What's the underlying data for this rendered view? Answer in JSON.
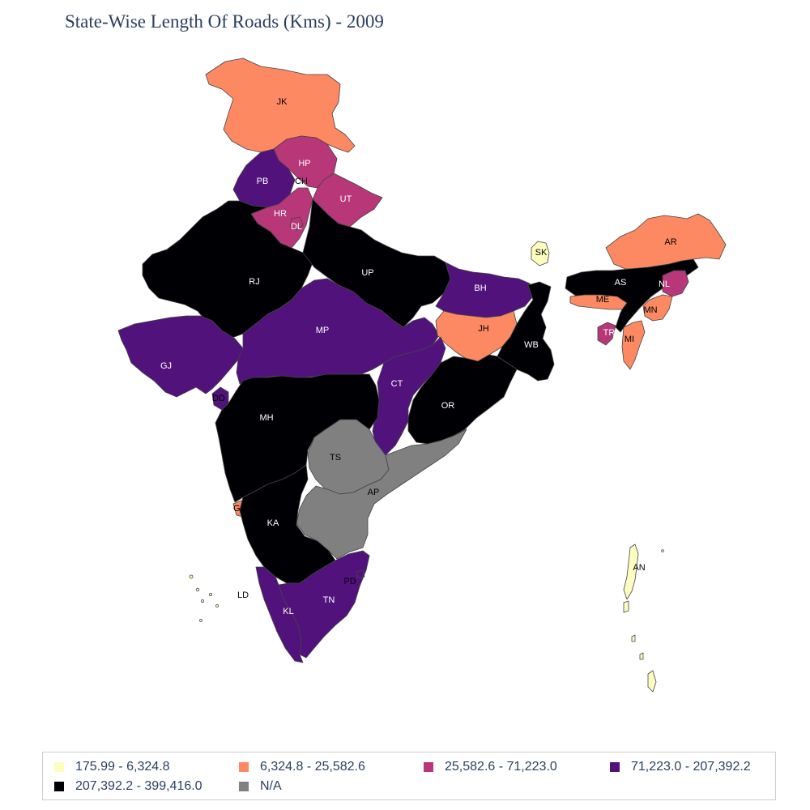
{
  "title": "State-Wise Length Of Roads (Kms) - 2009",
  "colors": {
    "c1": "#fcfdbf",
    "c2": "#fc8961",
    "c3": "#b73779",
    "c4": "#51127c",
    "c5": "#000004",
    "na": "#808080"
  },
  "legend": [
    {
      "label": "175.99 - 6,324.8",
      "color": "#fcfdbf"
    },
    {
      "label": "6,324.8 - 25,582.6",
      "color": "#fc8961"
    },
    {
      "label": "25,582.6 - 71,223.0",
      "color": "#b73779"
    },
    {
      "label": "71,223.0 - 207,392.2",
      "color": "#51127c"
    },
    {
      "label": "207,392.2 - 399,416.0",
      "color": "#000004"
    },
    {
      "label": "N/A",
      "color": "#808080"
    }
  ],
  "states": [
    {
      "code": "JK",
      "class": "6,324.8 - 25,582.6"
    },
    {
      "code": "HP",
      "class": "25,582.6 - 71,223.0"
    },
    {
      "code": "PB",
      "class": "71,223.0 - 207,392.2"
    },
    {
      "code": "CH",
      "class": "25,582.6 - 71,223.0"
    },
    {
      "code": "UT",
      "class": "25,582.6 - 71,223.0"
    },
    {
      "code": "HR",
      "class": "25,582.6 - 71,223.0"
    },
    {
      "code": "DL",
      "class": "25,582.6 - 71,223.0"
    },
    {
      "code": "RJ",
      "class": "207,392.2 - 399,416.0"
    },
    {
      "code": "UP",
      "class": "207,392.2 - 399,416.0"
    },
    {
      "code": "BH",
      "class": "71,223.0 - 207,392.2"
    },
    {
      "code": "SK",
      "class": "175.99 - 6,324.8"
    },
    {
      "code": "AR",
      "class": "6,324.8 - 25,582.6"
    },
    {
      "code": "AS",
      "class": "207,392.2 - 399,416.0"
    },
    {
      "code": "NL",
      "class": "25,582.6 - 71,223.0"
    },
    {
      "code": "ME",
      "class": "6,324.8 - 25,582.6"
    },
    {
      "code": "MN",
      "class": "6,324.8 - 25,582.6"
    },
    {
      "code": "TR",
      "class": "25,582.6 - 71,223.0"
    },
    {
      "code": "MI",
      "class": "6,324.8 - 25,582.6"
    },
    {
      "code": "GJ",
      "class": "71,223.0 - 207,392.2"
    },
    {
      "code": "MP",
      "class": "71,223.0 - 207,392.2"
    },
    {
      "code": "JH",
      "class": "6,324.8 - 25,582.6"
    },
    {
      "code": "WB",
      "class": "207,392.2 - 399,416.0"
    },
    {
      "code": "CT",
      "class": "71,223.0 - 207,392.2"
    },
    {
      "code": "OR",
      "class": "207,392.2 - 399,416.0"
    },
    {
      "code": "DD",
      "class": "71,223.0 - 207,392.2"
    },
    {
      "code": "MH",
      "class": "207,392.2 - 399,416.0"
    },
    {
      "code": "TS",
      "class": "N/A"
    },
    {
      "code": "AP",
      "class": "N/A"
    },
    {
      "code": "GA",
      "class": "6,324.8 - 25,582.6"
    },
    {
      "code": "KA",
      "class": "207,392.2 - 399,416.0"
    },
    {
      "code": "PD",
      "class": "71,223.0 - 207,392.2"
    },
    {
      "code": "TN",
      "class": "71,223.0 - 207,392.2"
    },
    {
      "code": "KL",
      "class": "71,223.0 - 207,392.2"
    },
    {
      "code": "LD",
      "class": "175.99 - 6,324.8"
    },
    {
      "code": "AN",
      "class": "175.99 - 6,324.8"
    }
  ]
}
